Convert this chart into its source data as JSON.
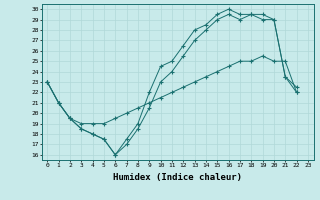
{
  "xlabel": "Humidex (Indice chaleur)",
  "bg_color": "#c8eaea",
  "line_color": "#1a7070",
  "grid_color": "#b0d8d8",
  "xlim": [
    -0.5,
    23.5
  ],
  "ylim": [
    15.5,
    30.5
  ],
  "xticks": [
    0,
    1,
    2,
    3,
    4,
    5,
    6,
    7,
    8,
    9,
    10,
    11,
    12,
    13,
    14,
    15,
    16,
    17,
    18,
    19,
    20,
    21,
    22,
    23
  ],
  "yticks": [
    16,
    17,
    18,
    19,
    20,
    21,
    22,
    23,
    24,
    25,
    26,
    27,
    28,
    29,
    30
  ],
  "series": [
    {
      "x": [
        0,
        1,
        2,
        3,
        4,
        5,
        6,
        7,
        8,
        9,
        10,
        11,
        12,
        13,
        14,
        15,
        16,
        17,
        18,
        19,
        20,
        21,
        22,
        23
      ],
      "y": [
        23,
        21,
        19.5,
        18.5,
        18,
        17.5,
        16,
        17.5,
        19,
        22,
        24.5,
        25,
        26.5,
        28,
        28.5,
        29.5,
        30,
        29.5,
        29.5,
        29.5,
        29,
        23.5,
        22.5,
        null
      ]
    },
    {
      "x": [
        0,
        1,
        2,
        3,
        4,
        5,
        6,
        7,
        8,
        9,
        10,
        11,
        12,
        13,
        14,
        15,
        16,
        17,
        18,
        19,
        20,
        21,
        22,
        23
      ],
      "y": [
        23,
        21,
        19.5,
        18.5,
        18,
        17.5,
        16,
        17,
        18.5,
        20.5,
        23,
        24,
        25.5,
        27,
        28,
        29,
        29.5,
        29,
        29.5,
        29,
        29,
        23.5,
        22,
        null
      ]
    },
    {
      "x": [
        0,
        1,
        2,
        3,
        4,
        5,
        6,
        7,
        8,
        9,
        10,
        11,
        12,
        13,
        14,
        15,
        16,
        17,
        18,
        19,
        20,
        21,
        22,
        23
      ],
      "y": [
        23,
        21,
        19.5,
        19,
        19,
        19,
        19.5,
        20,
        20.5,
        21,
        21.5,
        22,
        22.5,
        23,
        23.5,
        24,
        24.5,
        25,
        25,
        25.5,
        25,
        25,
        22,
        null
      ]
    }
  ]
}
